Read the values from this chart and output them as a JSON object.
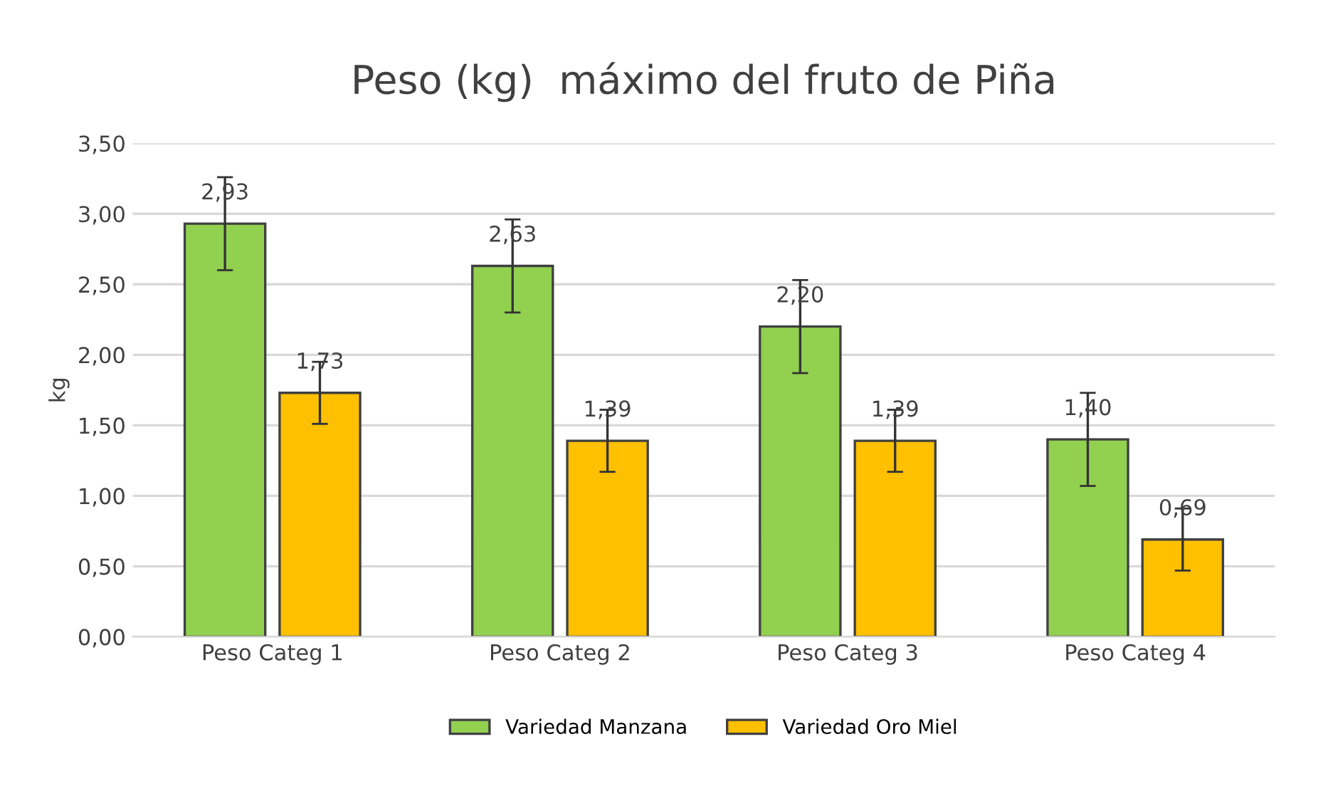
{
  "chart_data": {
    "type": "bar",
    "title": "Peso (kg)  máximo del fruto de Piña",
    "ylabel": "kg",
    "categories": [
      "Peso Categ 1",
      "Peso Categ 2",
      "Peso Categ 3",
      "Peso Categ 4"
    ],
    "series": [
      {
        "name": "Variedad Manzana",
        "color": "#92d050",
        "values": [
          2.93,
          2.63,
          2.2,
          1.4
        ],
        "errors": [
          0.33,
          0.33,
          0.33,
          0.33
        ],
        "value_labels": [
          "2,93",
          "2,63",
          "2,20",
          "1,40"
        ]
      },
      {
        "name": "Variedad Oro Miel",
        "color": "#ffc000",
        "values": [
          1.73,
          1.39,
          1.39,
          0.69
        ],
        "errors": [
          0.22,
          0.22,
          0.22,
          0.22
        ],
        "value_labels": [
          "1,73",
          "1,39",
          "1,39",
          "0,69"
        ]
      }
    ],
    "ylim": [
      0,
      3.5
    ],
    "yticks": [
      {
        "value": 0,
        "label": "0,00"
      },
      {
        "value": 0.5,
        "label": "0,50"
      },
      {
        "value": 1,
        "label": "1,00"
      },
      {
        "value": 1.5,
        "label": "1,50"
      },
      {
        "value": 2,
        "label": "2,00"
      },
      {
        "value": 2.5,
        "label": "2,50"
      },
      {
        "value": 3,
        "label": "3,00"
      },
      {
        "value": 3.5,
        "label": "3,50"
      }
    ],
    "grid": "y",
    "legend": "bottom"
  }
}
